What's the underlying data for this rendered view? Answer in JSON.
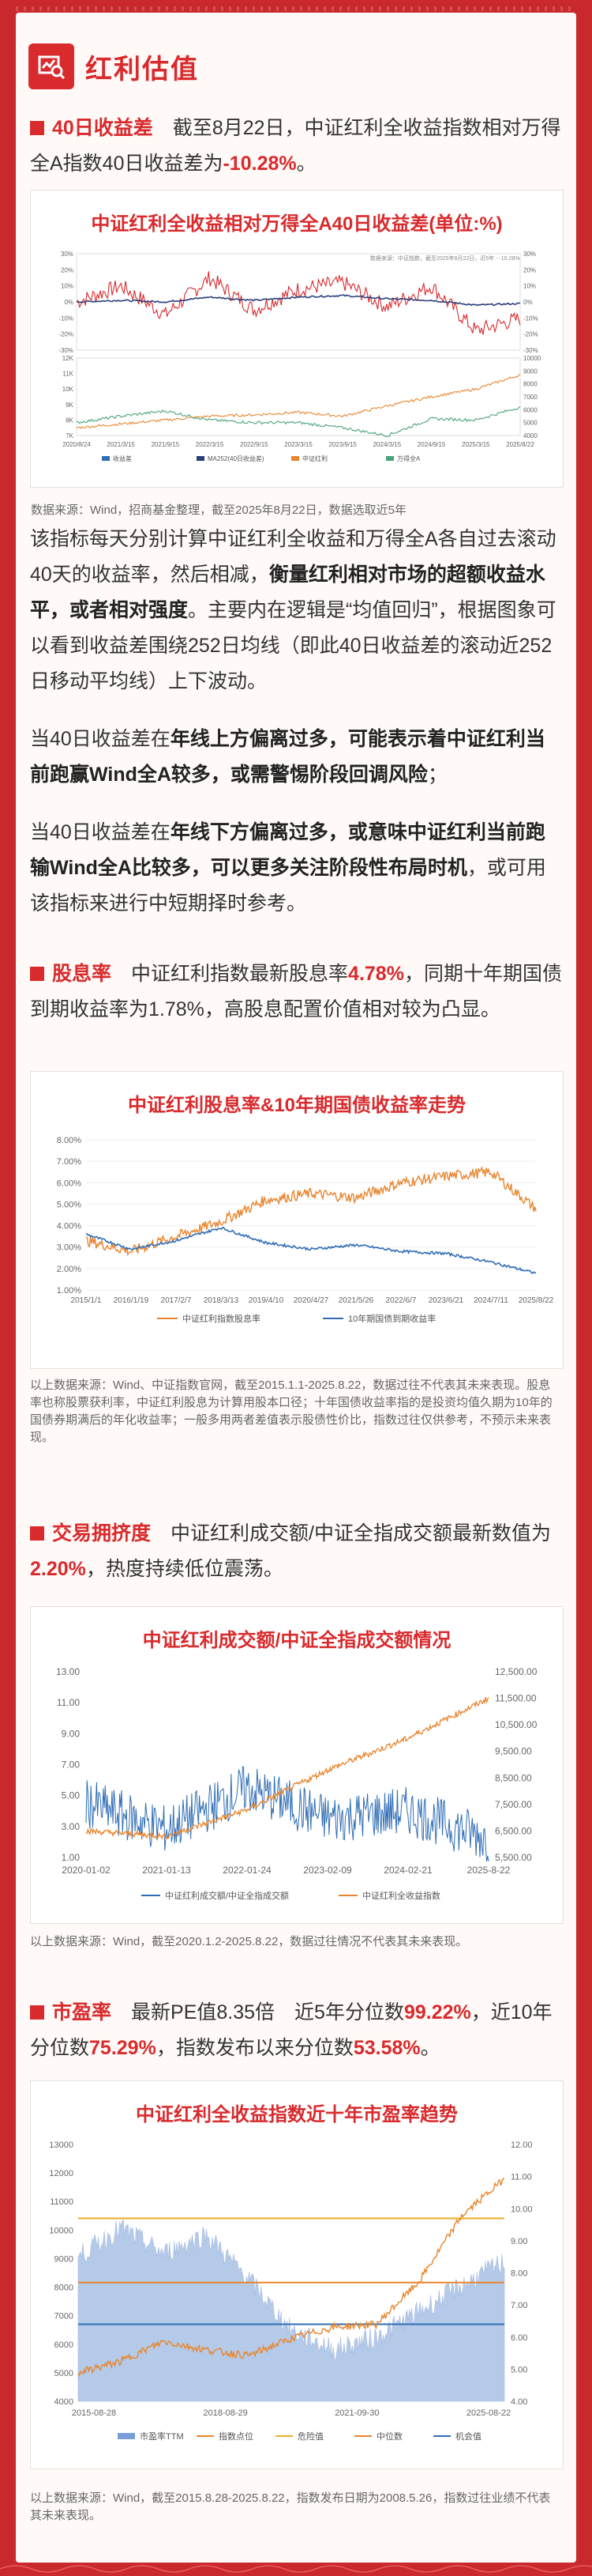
{
  "header": {
    "title": "红利估值"
  },
  "sec1": {
    "label": "40日收益差",
    "p1_a": "截至8月22日，中证红利全收益指数相对万得全A指数40日收益差为",
    "p1_value": "-10.28%",
    "p1_end": "。",
    "card_title": "中证红利全收益相对万得全A40日收益差(单位:%)",
    "top_legend": "数据来源：中证指数，截至2025年8月22日，近5年 - -10.28%",
    "legend_items": [
      "收益差",
      "MA252(40日收益差)",
      "中证红利",
      "万得全A"
    ],
    "source": "数据来源：Wind，招商基金整理，截至2025年8月22日，数据选取近5年",
    "p2_a": "该指标每天分别计算中证红利全收益和万得全A各自过去滚动40天的收益率，然后相减，",
    "p2_b": "衡量红利相对市场的超额收益水平，或者相对强度",
    "p2_c": "。主要内在逻辑是“均值回归”，根据图象可以看到收益差围绕252日均线（即此40日收益差的滚动近252日移动平均线）上下波动。",
    "p3_a": "当40日收益差在",
    "p3_b": "年线上方偏离过多，可能表示着中证红利当前跑赢Wind全A较多，或需警惕阶段回调风险",
    "p3_c": "；",
    "p4_a": "当40日收益差在",
    "p4_b": "年线下方偏离过多，或意味中证红利当前跑输Wind全A比较多，可以更多关注阶段性布局时机",
    "p4_c": "，或可用该指标来进行中短期择时参考。"
  },
  "sec2": {
    "label": "股息率",
    "p_a": "中证红利指数最新股息率",
    "value": "4.78%",
    "p_b": "，同期十年期国债到期收益率为1.78%，高股息配置价值相对较为凸显。",
    "card_title": "中证红利股息率&10年期国债收益率走势",
    "legend": [
      "中证红利指数股息率",
      "10年期国债到期收益率"
    ],
    "note": "以上数据来源：Wind、中证指数官网，截至2015.1.1-2025.8.22，数据过往不代表其未来表现。股息率也称股票获利率，中证红利股息为计算用股本口径；十年国债收益率指的是投资均值久期为10年的国债券期满后的年化收益率；一般多用两者差值表示股债性价比，指数过往仅供参考，不预示未来表现。"
  },
  "sec3": {
    "label": "交易拥挤度",
    "p_a": "中证红利成交额/中证全指成交额最新数值为",
    "value": "2.20%",
    "p_b": "，热度持续低位震荡。",
    "card_title": "中证红利成交额/中证全指成交额情况",
    "legend": [
      "中证红利成交额/中证全指成交额",
      "中证红利全收益指数"
    ],
    "note": "以上数据来源：Wind，截至2020.1.2-2025.8.22，数据过往情况不代表其未来表现。"
  },
  "sec4": {
    "label": "市盈率",
    "p_a": "最新PE值8.35倍　近5年分位数",
    "v1": "99.22%",
    "p_b": "，近10年分位数",
    "v2": "75.29%",
    "p_c": "，指数发布以来分位数",
    "v3": "53.58%",
    "p_d": "。",
    "card_title": "中证红利全收益指数近十年市盈率趋势",
    "legend": [
      "市盈率TTM",
      "指数点位",
      "危险值",
      "中位数",
      "机会值"
    ],
    "note": "以上数据来源：Wind，截至2015.8.28-2025.8.22，指数发布日期为2008.5.26，指数过往业绩不代表其未来表现。"
  },
  "chart_data": [
    {
      "type": "line",
      "title": "中证红利全收益相对万得全A40日收益差(单位:%)",
      "panel": "upper",
      "x": [
        "2020/8/24",
        "2021/3/15",
        "2021/9/15",
        "2022/3/15",
        "2022/9/15",
        "2023/3/15",
        "2023/9/15",
        "2024/3/15",
        "2024/9/15",
        "2025/3/15",
        "2025/8/22"
      ],
      "series": [
        {
          "name": "收益差",
          "values": [
            0,
            10,
            -8,
            15,
            -5,
            8,
            12,
            -3,
            10,
            -18,
            -10.28
          ]
        },
        {
          "name": "MA252(40日收益差)",
          "values": [
            0,
            1,
            0,
            3,
            1,
            3,
            4,
            2,
            1,
            -2,
            -1
          ]
        }
      ],
      "ylim": [
        -30,
        30
      ]
    },
    {
      "type": "line",
      "panel": "lower",
      "series": [
        {
          "name": "中证红利",
          "values": [
            4600,
            4900,
            5200,
            5500,
            5600,
            5800,
            5500,
            6300,
            7000,
            7600,
            8700
          ]
        },
        {
          "name": "万得全A",
          "values": [
            5000,
            5500,
            5900,
            5200,
            5000,
            5000,
            4600,
            4000,
            5300,
            5200,
            6200
          ]
        }
      ],
      "ylim": [
        4000,
        10000
      ]
    },
    {
      "type": "line",
      "title": "中证红利股息率&10年期国债收益率走势",
      "x": [
        "2015/1/1",
        "2016/1/19",
        "2017/2/7",
        "2018/3/13",
        "2019/4/10",
        "2020/4/27",
        "2021/5/26",
        "2022/6/7",
        "2023/6/21",
        "2024/7/11",
        "2025/8/22"
      ],
      "series": [
        {
          "name": "中证红利指数股息率",
          "values": [
            3.3,
            2.8,
            3.5,
            4.2,
            5.2,
            5.5,
            5.3,
            6.0,
            6.3,
            6.5,
            4.78
          ]
        },
        {
          "name": "10年期国债到期收益率",
          "values": [
            3.6,
            2.9,
            3.3,
            3.9,
            3.2,
            2.9,
            3.1,
            2.8,
            2.7,
            2.3,
            1.78
          ]
        }
      ],
      "ylim": [
        1.0,
        8.0
      ]
    },
    {
      "type": "line",
      "title": "中证红利成交额/中证全指成交额情况",
      "x": [
        "2020-01-02",
        "2021-01-13",
        "2022-01-24",
        "2023-02-09",
        "2024-02-21",
        "2025-8-22"
      ],
      "series": [
        {
          "name": "中证红利成交额/中证全指成交额",
          "values": [
            4.5,
            2.8,
            5.5,
            3.5,
            4.0,
            2.2
          ]
        },
        {
          "name": "中证红利全收益指数",
          "values": [
            6500,
            6300,
            7300,
            8800,
            10000,
            11500
          ]
        }
      ],
      "ylim": [
        1.0,
        13.0
      ],
      "y2lim": [
        5500,
        12500
      ]
    },
    {
      "type": "area",
      "title": "中证红利全收益指数近十年市盈率趋势",
      "x": [
        "2015-08-28",
        "2018-08-29",
        "2021-09-30",
        "2025-08-22"
      ],
      "series": [
        {
          "name": "市盈率TTM",
          "values": [
            8.5,
            9.2,
            5.6,
            8.35
          ]
        },
        {
          "name": "指数点位",
          "values": [
            5000,
            5600,
            6600,
            11800
          ]
        }
      ],
      "ylim": [
        4000,
        13000
      ],
      "y2lim": [
        4.0,
        12.0
      ]
    }
  ],
  "axis": {
    "c1_top_left": [
      "30%",
      "20%",
      "10%",
      "0%",
      "-10%",
      "-20%",
      "-30%"
    ],
    "c1_top_right": [
      "30%",
      "20%",
      "10%",
      "0%",
      "-10%",
      "-20%",
      "-30%"
    ],
    "c1_bot_left": [
      "12K",
      "11K",
      "10K",
      "9K",
      "8K",
      "7K"
    ],
    "c1_bot_right": [
      "10000",
      "9000",
      "8000",
      "7000",
      "6000",
      "5000",
      "4000"
    ],
    "c1_x": [
      "2020/8/24",
      "2021/3/15",
      "2021/9/15",
      "2022/3/15",
      "2022/9/15",
      "2023/3/15",
      "2023/9/15",
      "2024/3/15",
      "2024/9/15",
      "2025/3/15",
      "2025/8/22"
    ],
    "c2_y": [
      "8.00%",
      "7.00%",
      "6.00%",
      "5.00%",
      "4.00%",
      "3.00%",
      "2.00%",
      "1.00%"
    ],
    "c2_x": [
      "2015/1/1",
      "2016/1/19",
      "2017/2/7",
      "2018/3/13",
      "2019/4/10",
      "2020/4/27",
      "2021/5/26",
      "2022/6/7",
      "2023/6/21",
      "2024/7/11",
      "2025/8/22"
    ],
    "c3_left": [
      "13.00",
      "11.00",
      "9.00",
      "7.00",
      "5.00",
      "3.00",
      "1.00"
    ],
    "c3_right": [
      "12,500.00",
      "11,500.00",
      "10,500.00",
      "9,500.00",
      "8,500.00",
      "7,500.00",
      "6,500.00",
      "5,500.00"
    ],
    "c3_x": [
      "2020-01-02",
      "2021-01-13",
      "2022-01-24",
      "2023-02-09",
      "2024-02-21",
      "2025-8-22"
    ],
    "c4_left": [
      "13000",
      "12000",
      "11000",
      "10000",
      "9000",
      "8000",
      "7000",
      "6000",
      "5000",
      "4000"
    ],
    "c4_right": [
      "12.00",
      "11.00",
      "10.00",
      "9.00",
      "8.00",
      "7.00",
      "6.00",
      "5.00",
      "4.00"
    ],
    "c4_x": [
      "2015-08-28",
      "2018-08-29",
      "2021-09-30",
      "2025-08-22"
    ]
  },
  "colors": {
    "brand": "#d92a2d",
    "blue": "#2f6db5",
    "orange": "#e8852d",
    "green": "#4aa37a",
    "navy": "#2a3e7a"
  },
  "icons": {
    "logo": "chart-search-icon",
    "bullet": "square-icon"
  }
}
